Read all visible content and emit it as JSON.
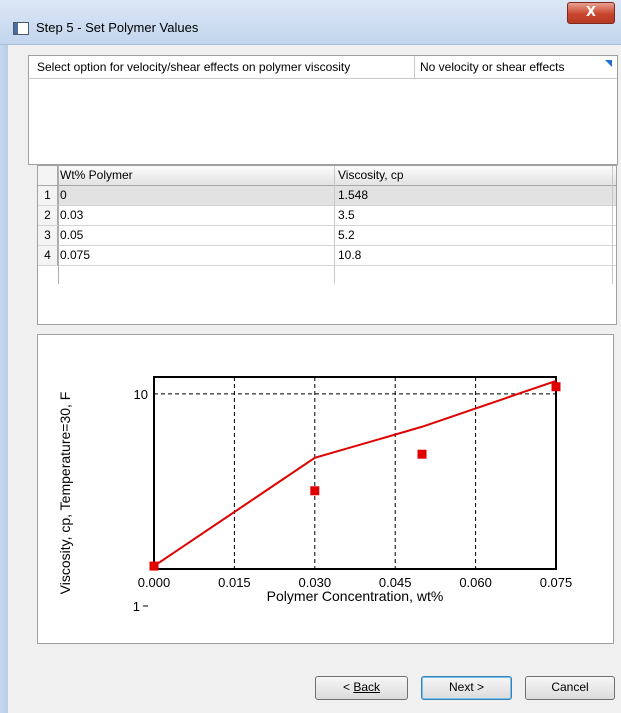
{
  "window": {
    "title": "Step 5 - Set Polymer Values",
    "close_glyph": "X"
  },
  "option": {
    "label": "Select option for velocity/shear effects on polymer viscosity",
    "value": "No velocity or shear effects"
  },
  "table": {
    "columns": [
      "Wt% Polymer",
      "Viscosity, cp"
    ],
    "rows": [
      {
        "num": "1",
        "wt": "0",
        "visc": "1.548"
      },
      {
        "num": "2",
        "wt": "0.03",
        "visc": "3.5"
      },
      {
        "num": "3",
        "wt": "0.05",
        "visc": "5.2"
      },
      {
        "num": "4",
        "wt": "0.075",
        "visc": "10.8"
      }
    ]
  },
  "chart_data": {
    "type": "scatter",
    "xlabel": "Polymer Concentration, wt%",
    "ylabel": "Viscosity, cp, Temperature=30, F",
    "x_ticks": [
      "0.000",
      "0.015",
      "0.030",
      "0.045",
      "0.060",
      "0.075"
    ],
    "y_ticks": [
      "10"
    ],
    "y_minor_label": "1",
    "xlim": [
      0,
      0.075
    ],
    "ylim_log": [
      1.5,
      12
    ],
    "y_scale": "log",
    "grid": true,
    "series": [
      {
        "style": "markers",
        "color": "#e00000",
        "x": [
          0,
          0.03,
          0.05,
          0.075
        ],
        "y": [
          1.548,
          3.5,
          5.2,
          10.8
        ]
      },
      {
        "style": "line",
        "color": "#e00000",
        "x": [
          0,
          0.03,
          0.05,
          0.075
        ],
        "y": [
          1.548,
          5.0,
          7.0,
          11.5
        ]
      }
    ]
  },
  "buttons": {
    "back": "Back",
    "back_prefix": "< ",
    "next": "Next >",
    "cancel": "Cancel"
  }
}
